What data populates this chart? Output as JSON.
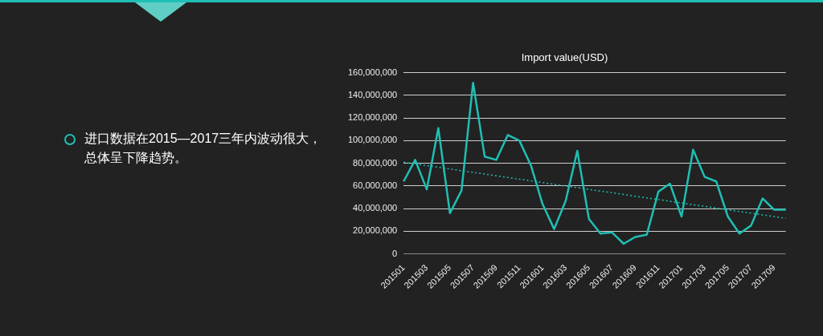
{
  "chart_data": {
    "type": "line",
    "title": "Import value(USD)",
    "categories": [
      "201501",
      null,
      "201503",
      null,
      "201505",
      null,
      "201507",
      null,
      "201509",
      null,
      "201511",
      null,
      "201601",
      null,
      "201603",
      null,
      "201605",
      null,
      "201607",
      null,
      "201609",
      null,
      "201611",
      null,
      "201701",
      null,
      "201703",
      null,
      "201705",
      null,
      "201707",
      null,
      "201709",
      null
    ],
    "series": [
      {
        "color": "#1fbfb3",
        "values": [
          64000000,
          83000000,
          57000000,
          111000000,
          36000000,
          56000000,
          151000000,
          86000000,
          83000000,
          105000000,
          100000000,
          78000000,
          44000000,
          22000000,
          47000000,
          91000000,
          31000000,
          18000000,
          19000000,
          9000000,
          15000000,
          17000000,
          55000000,
          62000000,
          33000000,
          92000000,
          68000000,
          64000000,
          33000000,
          18000000,
          25000000,
          49000000,
          39000000,
          39000000
        ]
      },
      {
        "type": "line",
        "color": "#1fbfb3",
        "line_style": "dotted",
        "values": [
          81000000,
          79500000,
          78000000,
          76500000,
          75000000,
          73500000,
          72000000,
          70500000,
          69000000,
          67500000,
          66000000,
          64500000,
          63000000,
          61500000,
          60000000,
          58500000,
          57000000,
          55500000,
          54000000,
          52500000,
          51000000,
          49500000,
          48000000,
          46500000,
          45000000,
          43500000,
          42000000,
          40500000,
          39000000,
          37500000,
          36000000,
          34500000,
          33000000,
          31500000
        ]
      }
    ],
    "ylim": [
      0,
      160000000
    ],
    "yticks": [
      0,
      {
        "value": 20000000,
        "label": "20,000,000"
      },
      {
        "value": 40000000,
        "label": "40,000,000"
      },
      {
        "value": 60000000,
        "label": "60,000,000"
      },
      {
        "value": 80000000,
        "label": "80,000,000"
      },
      {
        "value": 100000000,
        "label": "100,000,000"
      },
      {
        "value": 120000000,
        "label": "120,000,000"
      },
      {
        "value": 140000000,
        "label": "140,000,000"
      },
      {
        "value": 160000000,
        "label": "160,000,000"
      }
    ],
    "grid": "y",
    "legend": false,
    "marker": "none",
    "line_style": "solid",
    "annotations": [
      "进口数据在2015—2017三年内波动很大，总体呈下降趋势。"
    ]
  }
}
